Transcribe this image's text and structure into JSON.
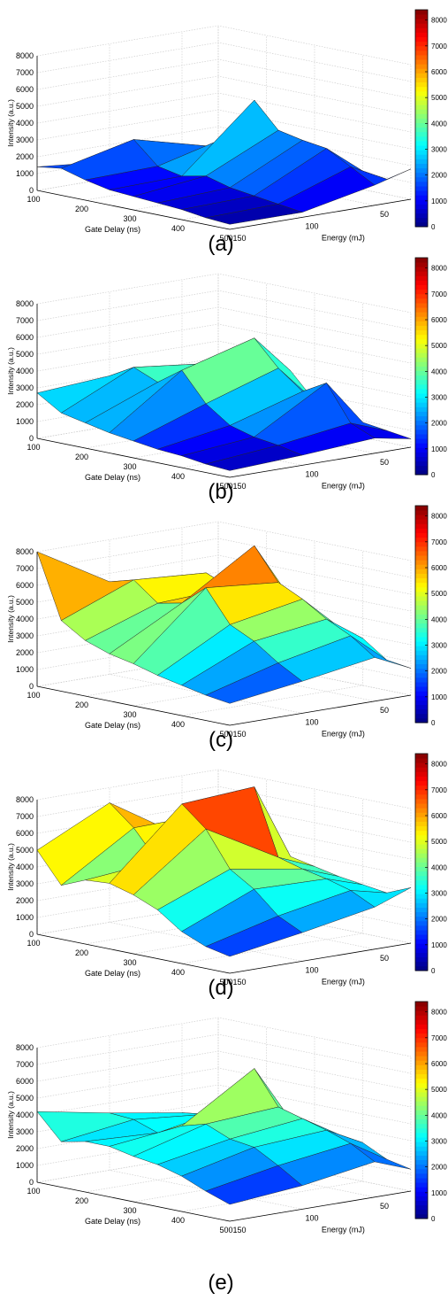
{
  "figure": {
    "colormap": "jet",
    "color_min": 0,
    "color_max": 8400,
    "panels": [
      {
        "caption": "(a)"
      },
      {
        "caption": "(b)"
      },
      {
        "caption": "(c)"
      },
      {
        "caption": "(d)"
      },
      {
        "caption": "(e)"
      }
    ]
  },
  "chart_data": [
    {
      "type": "surface3d",
      "panel": "(a)",
      "zlabel": "Intensity (a.u.)",
      "xlabel": "Gate Delay (ns)",
      "ylabel": "Energy (mJ)",
      "x_ticks": [
        "100",
        "200",
        "300",
        "400",
        "500"
      ],
      "y_ticks": [
        "150",
        "100",
        "50"
      ],
      "z_ticks": [
        "0",
        "1000",
        "2000",
        "3000",
        "4000",
        "5000",
        "6000",
        "7000",
        "8000"
      ],
      "colorbar_ticks": [
        "0",
        "1000",
        "2000",
        "3000",
        "4000",
        "5000",
        "6000",
        "7000",
        "8000"
      ],
      "gate_delay": [
        100,
        150,
        200,
        250,
        300,
        350,
        400,
        450,
        500
      ],
      "energy": [
        150,
        100,
        50,
        25
      ],
      "intensity": [
        [
          1400,
          1600,
          1200,
          900,
          800,
          700,
          600,
          400,
          300
        ],
        [
          1000,
          2600,
          1300,
          1000,
          1300,
          900,
          700,
          500,
          300
        ],
        [
          1200,
          1500,
          2400,
          4800,
          3300,
          3000,
          2800,
          2000,
          1200
        ],
        [
          800,
          1000,
          1300,
          1600,
          1900,
          1500,
          1100,
          900,
          1800
        ]
      ]
    },
    {
      "type": "surface3d",
      "panel": "(b)",
      "zlabel": "Intensity (a.u.)",
      "xlabel": "Gate Delay (ns)",
      "ylabel": "Energy (mJ)",
      "x_ticks": [
        "100",
        "200",
        "300",
        "400",
        "500"
      ],
      "y_ticks": [
        "150",
        "100",
        "50"
      ],
      "z_ticks": [
        "0",
        "1000",
        "2000",
        "3000",
        "4000",
        "5000",
        "6000",
        "7000",
        "8000"
      ],
      "colorbar_ticks": [
        "0",
        "1000",
        "2000",
        "3000",
        "4000",
        "5000",
        "6000",
        "7000",
        "8000"
      ],
      "gate_delay": [
        100,
        150,
        200,
        250,
        300,
        350,
        400,
        450,
        500
      ],
      "energy": [
        150,
        100,
        50,
        25
      ],
      "intensity": [
        [
          2700,
          1800,
          1500,
          1200,
          1000,
          800,
          700,
          500,
          400
        ],
        [
          3000,
          3800,
          3200,
          4200,
          2500,
          1500,
          1100,
          900,
          600
        ],
        [
          2600,
          3300,
          4200,
          5400,
          3900,
          2800,
          3600,
          1500,
          900
        ],
        [
          1600,
          2200,
          2600,
          3100,
          1600,
          1200,
          900,
          700,
          500
        ]
      ]
    },
    {
      "type": "surface3d",
      "panel": "(c)",
      "zlabel": "Intensity (a.u.)",
      "xlabel": "Gate Delay (ns)",
      "ylabel": "Energy (mJ)",
      "x_ticks": [
        "100",
        "200",
        "300",
        "400",
        "500"
      ],
      "y_ticks": [
        "150",
        "100",
        "50"
      ],
      "z_ticks": [
        "0",
        "1000",
        "2000",
        "3000",
        "4000",
        "5000",
        "6000",
        "7000",
        "8000"
      ],
      "colorbar_ticks": [
        "0",
        "1000",
        "2000",
        "3000",
        "4000",
        "5000",
        "6000",
        "7000",
        "8000"
      ],
      "gate_delay": [
        100,
        150,
        200,
        250,
        300,
        350,
        400,
        450,
        500
      ],
      "energy": [
        150,
        100,
        50,
        25
      ],
      "intensity": [
        [
          8000,
          4200,
          3300,
          2800,
          2500,
          2100,
          1800,
          1500,
          1300
        ],
        [
          5500,
          5900,
          4800,
          5100,
          6300,
          4400,
          3700,
          2700,
          1900
        ],
        [
          4600,
          5600,
          5000,
          7800,
          5900,
          5200,
          4300,
          3600,
          2600
        ],
        [
          3200,
          3900,
          4100,
          4300,
          3600,
          3200,
          2800,
          1800,
          1600
        ]
      ]
    },
    {
      "type": "surface3d",
      "panel": "(d)",
      "zlabel": "Intensity (a.u.)",
      "xlabel": "Gate Delay (ns)",
      "ylabel": "Energy (mJ)",
      "x_ticks": [
        "100",
        "200",
        "300",
        "400",
        "500"
      ],
      "y_ticks": [
        "150",
        "100",
        "50"
      ],
      "z_ticks": [
        "0",
        "1000",
        "2000",
        "3000",
        "4000",
        "5000",
        "6000",
        "7000",
        "8000"
      ],
      "colorbar_ticks": [
        "0",
        "1000",
        "2000",
        "3000",
        "4000",
        "5000",
        "6000",
        "7000",
        "8000"
      ],
      "gate_delay": [
        100,
        150,
        200,
        250,
        300,
        350,
        400,
        450,
        500
      ],
      "energy": [
        150,
        100,
        50,
        25
      ],
      "intensity": [
        [
          5000,
          3200,
          3800,
          3900,
          3500,
          2900,
          1900,
          1300,
          1000
        ],
        [
          7100,
          5900,
          4200,
          7900,
          6700,
          4600,
          3700,
          2400,
          1700
        ],
        [
          4400,
          6000,
          5200,
          8200,
          4300,
          3900,
          3600,
          3200,
          2500
        ],
        [
          2900,
          3300,
          3500,
          3700,
          3400,
          3100,
          2900,
          2700,
          3300
        ]
      ]
    },
    {
      "type": "surface3d",
      "panel": "(e)",
      "zlabel": "Intensity (a.u.)",
      "xlabel": "Gate Delay (ns)",
      "ylabel": "Energy (mJ)",
      "x_ticks": [
        "100",
        "200",
        "300",
        "400",
        "500"
      ],
      "y_ticks": [
        "150",
        "100",
        "50"
      ],
      "z_ticks": [
        "0",
        "1000",
        "2000",
        "3000",
        "4000",
        "5000",
        "6000",
        "7000",
        "8000"
      ],
      "colorbar_ticks": [
        "0",
        "1000",
        "2000",
        "3000",
        "4000",
        "5000",
        "6000",
        "7000",
        "8000"
      ],
      "gate_delay": [
        100,
        150,
        200,
        250,
        300,
        350,
        400,
        450,
        500
      ],
      "energy": [
        150,
        100,
        50,
        25
      ],
      "intensity": [
        [
          4200,
          2700,
          3000,
          3000,
          2700,
          2500,
          2100,
          1500,
          1000
        ],
        [
          3400,
          3300,
          2800,
          3500,
          3900,
          3300,
          3100,
          2300,
          1400
        ],
        [
          2700,
          2900,
          3600,
          6200,
          4200,
          3800,
          3400,
          2900,
          2100
        ],
        [
          1900,
          2300,
          2600,
          2800,
          2700,
          2500,
          2300,
          1600,
          1300
        ]
      ]
    }
  ]
}
